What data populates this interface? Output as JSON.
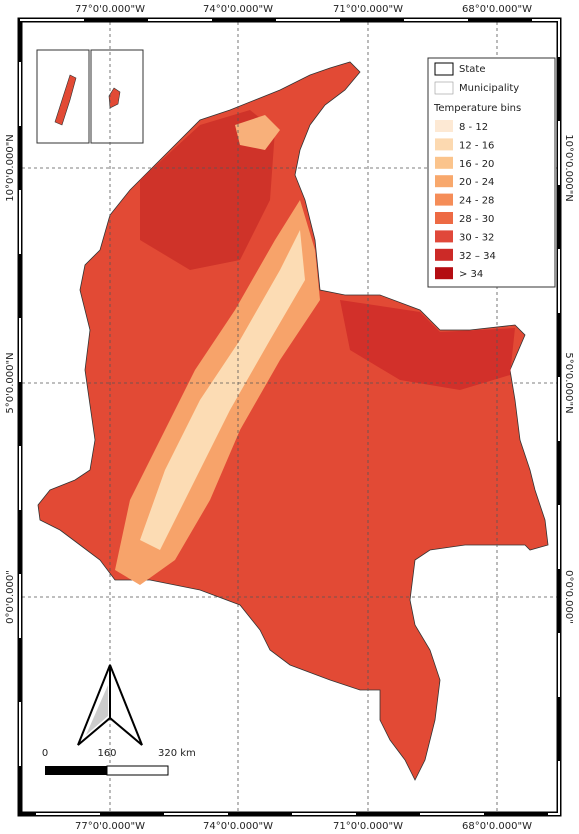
{
  "graticule": {
    "longitude_labels": [
      "77°0'0.000\"W",
      "74°0'0.000\"W",
      "71°0'0.000\"W",
      "68°0'0.000\"W"
    ],
    "latitude_labels": [
      "10°0'0.000\"N",
      "5°0'0.000\"N",
      "0°0'0.000\""
    ]
  },
  "legend": {
    "items": [
      "State",
      "Municipality"
    ],
    "title": "Temperature bins",
    "bins": [
      {
        "label": "8 - 12",
        "color": "#fde9d4"
      },
      {
        "label": "12 - 16",
        "color": "#fcd9b0"
      },
      {
        "label": "16 - 20",
        "color": "#fbc48c"
      },
      {
        "label": "20 - 24",
        "color": "#f8a86c"
      },
      {
        "label": "24 - 28",
        "color": "#f58d58"
      },
      {
        "label": "28 - 30",
        "color": "#ed6a44"
      },
      {
        "label": "30 - 32",
        "color": "#e0483a"
      },
      {
        "label": "32 – 34",
        "color": "#cc2a27"
      },
      {
        "label": "> 34",
        "color": "#b40d12"
      }
    ]
  },
  "scale_bar": {
    "labels": [
      "0",
      "160",
      "320 km"
    ]
  }
}
